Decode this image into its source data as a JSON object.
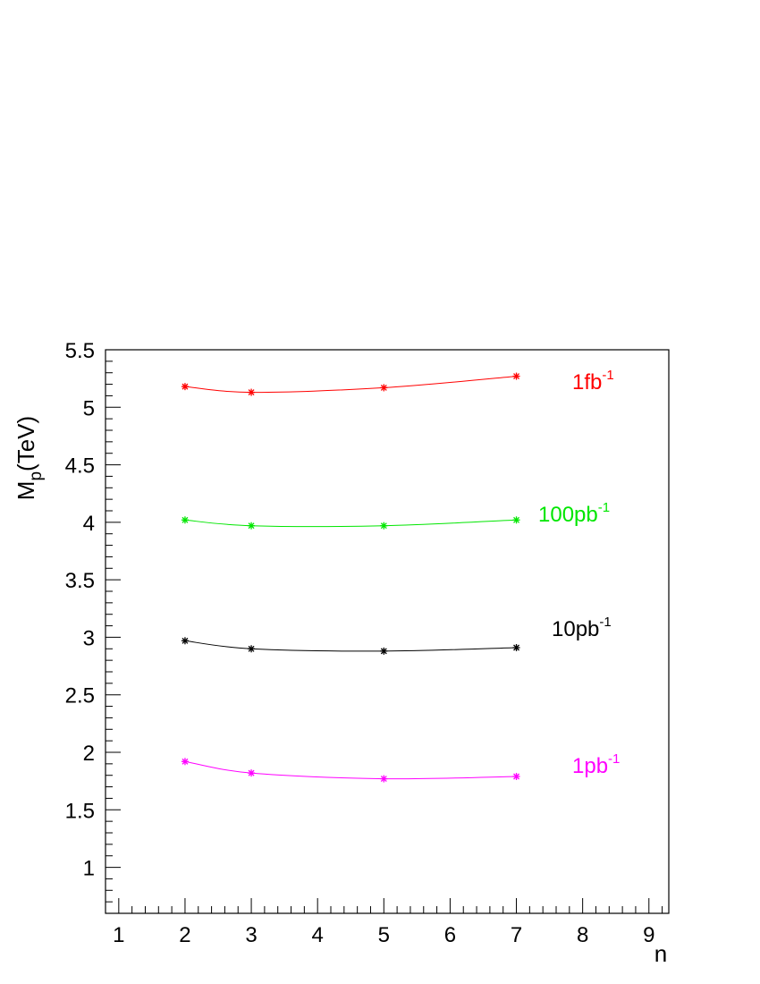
{
  "chart_data": {
    "type": "line",
    "xlabel": "n",
    "ylabel_main": "M",
    "ylabel_sub": "p",
    "ylabel_rest": "(TeV)",
    "xlim": [
      0.8,
      9.3
    ],
    "ylim": [
      0.6,
      5.5
    ],
    "x_ticks": [
      1,
      2,
      3,
      4,
      5,
      6,
      7,
      8,
      9
    ],
    "x_minor_step": 0.2,
    "y_ticks": [
      1,
      1.5,
      2,
      2.5,
      3,
      3.5,
      4,
      4.5,
      5,
      5.5
    ],
    "y_tick_labels": [
      "1",
      "1.5",
      "2",
      "2.5",
      "3",
      "3.5",
      "4",
      "4.5",
      "5",
      "5.5"
    ],
    "y_minor_step": 0.1,
    "grid": false,
    "legend": "inline labels at right",
    "series": [
      {
        "name": "1fb",
        "exponent": "-1",
        "color": "#ff0000",
        "x": [
          2,
          3,
          5,
          7
        ],
        "values": [
          5.18,
          5.13,
          5.17,
          5.27
        ]
      },
      {
        "name": "100pb",
        "exponent": "-1",
        "color": "#00e600",
        "x": [
          2,
          3,
          5,
          7
        ],
        "values": [
          4.02,
          3.97,
          3.97,
          4.02
        ]
      },
      {
        "name": "10pb",
        "exponent": "-1",
        "color": "#000000",
        "x": [
          2,
          3,
          5,
          7
        ],
        "values": [
          2.97,
          2.9,
          2.88,
          2.91
        ]
      },
      {
        "name": "1pb",
        "exponent": "-1",
        "color": "#ff00ff",
        "x": [
          2,
          3,
          5,
          7
        ],
        "values": [
          1.92,
          1.82,
          1.77,
          1.79
        ]
      }
    ]
  }
}
